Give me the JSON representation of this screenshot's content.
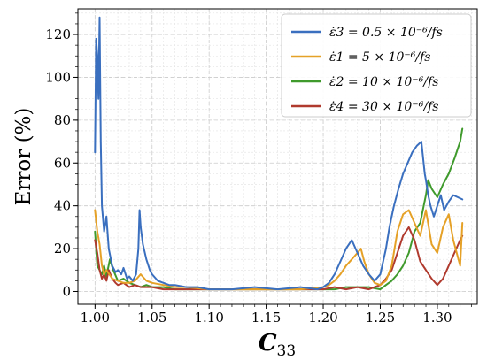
{
  "chart_data": {
    "type": "line",
    "xlabel": "C33",
    "ylabel": "Error (%)",
    "xlim": [
      0.985,
      1.335
    ],
    "ylim": [
      -6,
      132
    ],
    "xticks": [
      "1.00",
      "1.05",
      "1.10",
      "1.15",
      "1.20",
      "1.25",
      "1.30"
    ],
    "yticks": [
      "0",
      "20",
      "40",
      "60",
      "80",
      "100",
      "120"
    ],
    "grid": true,
    "legend_position": "top-right",
    "series": [
      {
        "name": "ε̇3 = 0.5 × 10⁻⁶/fs",
        "color": "#3a6fbf",
        "x": [
          1.0,
          1.001,
          1.002,
          1.003,
          1.004,
          1.005,
          1.006,
          1.008,
          1.01,
          1.012,
          1.015,
          1.018,
          1.02,
          1.023,
          1.025,
          1.028,
          1.03,
          1.033,
          1.036,
          1.038,
          1.039,
          1.04,
          1.042,
          1.045,
          1.048,
          1.05,
          1.055,
          1.06,
          1.065,
          1.07,
          1.08,
          1.09,
          1.1,
          1.12,
          1.14,
          1.16,
          1.18,
          1.195,
          1.2,
          1.205,
          1.21,
          1.215,
          1.22,
          1.225,
          1.23,
          1.235,
          1.24,
          1.245,
          1.25,
          1.255,
          1.258,
          1.262,
          1.266,
          1.27,
          1.274,
          1.278,
          1.282,
          1.286,
          1.289,
          1.29,
          1.292,
          1.294,
          1.297,
          1.3,
          1.303,
          1.306,
          1.31,
          1.314,
          1.318,
          1.322
        ],
        "y": [
          65,
          118,
          110,
          90,
          128,
          70,
          40,
          28,
          35,
          20,
          12,
          9,
          10,
          8,
          11,
          6,
          7,
          5,
          8,
          20,
          38,
          30,
          22,
          15,
          10,
          8,
          5,
          4,
          3,
          3,
          2,
          2,
          1,
          1,
          2,
          1,
          2,
          1,
          2,
          4,
          8,
          14,
          20,
          24,
          18,
          12,
          8,
          5,
          8,
          20,
          30,
          40,
          48,
          55,
          60,
          65,
          68,
          70,
          55,
          52,
          45,
          40,
          35,
          40,
          45,
          38,
          42,
          45,
          44,
          43
        ]
      },
      {
        "name": "ε̇1 = 5 × 10⁻⁶/fs",
        "color": "#e5a127",
        "x": [
          1.0,
          1.002,
          1.004,
          1.006,
          1.008,
          1.01,
          1.015,
          1.02,
          1.025,
          1.03,
          1.035,
          1.04,
          1.045,
          1.05,
          1.06,
          1.07,
          1.08,
          1.1,
          1.12,
          1.14,
          1.16,
          1.18,
          1.2,
          1.205,
          1.21,
          1.215,
          1.22,
          1.225,
          1.23,
          1.233,
          1.236,
          1.24,
          1.245,
          1.25,
          1.255,
          1.26,
          1.265,
          1.27,
          1.275,
          1.28,
          1.285,
          1.29,
          1.295,
          1.3,
          1.305,
          1.31,
          1.314,
          1.318,
          1.32,
          1.322
        ],
        "y": [
          38,
          28,
          22,
          12,
          8,
          10,
          6,
          5,
          4,
          4,
          5,
          8,
          5,
          4,
          3,
          2,
          2,
          1,
          1,
          1,
          1,
          1,
          2,
          3,
          5,
          8,
          12,
          15,
          18,
          20,
          14,
          8,
          4,
          3,
          5,
          12,
          28,
          36,
          38,
          32,
          26,
          38,
          22,
          18,
          30,
          36,
          24,
          16,
          12,
          32
        ]
      },
      {
        "name": "ε̇2 = 10 × 10⁻⁶/fs",
        "color": "#3f9a2c",
        "x": [
          1.0,
          1.002,
          1.004,
          1.006,
          1.008,
          1.01,
          1.013,
          1.016,
          1.02,
          1.025,
          1.03,
          1.035,
          1.04,
          1.045,
          1.05,
          1.06,
          1.07,
          1.08,
          1.1,
          1.12,
          1.14,
          1.16,
          1.18,
          1.2,
          1.21,
          1.22,
          1.23,
          1.24,
          1.25,
          1.255,
          1.26,
          1.265,
          1.27,
          1.275,
          1.28,
          1.285,
          1.29,
          1.292,
          1.295,
          1.3,
          1.305,
          1.31,
          1.315,
          1.32,
          1.322
        ],
        "y": [
          28,
          12,
          10,
          8,
          12,
          7,
          15,
          10,
          5,
          6,
          4,
          3,
          2,
          3,
          2,
          2,
          1,
          1,
          1,
          1,
          1,
          1,
          1,
          1,
          1,
          2,
          2,
          2,
          1,
          3,
          5,
          8,
          12,
          18,
          28,
          32,
          45,
          52,
          48,
          44,
          50,
          55,
          62,
          70,
          76
        ]
      },
      {
        "name": "ε̇4 = 30 × 10⁻⁶/fs",
        "color": "#b03a2e",
        "x": [
          1.0,
          1.002,
          1.004,
          1.006,
          1.008,
          1.01,
          1.012,
          1.015,
          1.018,
          1.02,
          1.025,
          1.03,
          1.035,
          1.04,
          1.045,
          1.05,
          1.06,
          1.07,
          1.08,
          1.1,
          1.12,
          1.14,
          1.16,
          1.18,
          1.2,
          1.21,
          1.22,
          1.23,
          1.24,
          1.245,
          1.25,
          1.255,
          1.26,
          1.265,
          1.27,
          1.275,
          1.28,
          1.285,
          1.29,
          1.295,
          1.3,
          1.305,
          1.31,
          1.315,
          1.32,
          1.322
        ],
        "y": [
          24,
          18,
          10,
          6,
          8,
          5,
          10,
          6,
          4,
          3,
          4,
          2,
          3,
          2,
          2,
          2,
          1,
          1,
          1,
          1,
          1,
          1,
          1,
          1,
          1,
          2,
          1,
          2,
          1,
          2,
          3,
          6,
          10,
          18,
          26,
          30,
          24,
          14,
          10,
          6,
          3,
          6,
          12,
          18,
          24,
          26
        ]
      }
    ]
  }
}
